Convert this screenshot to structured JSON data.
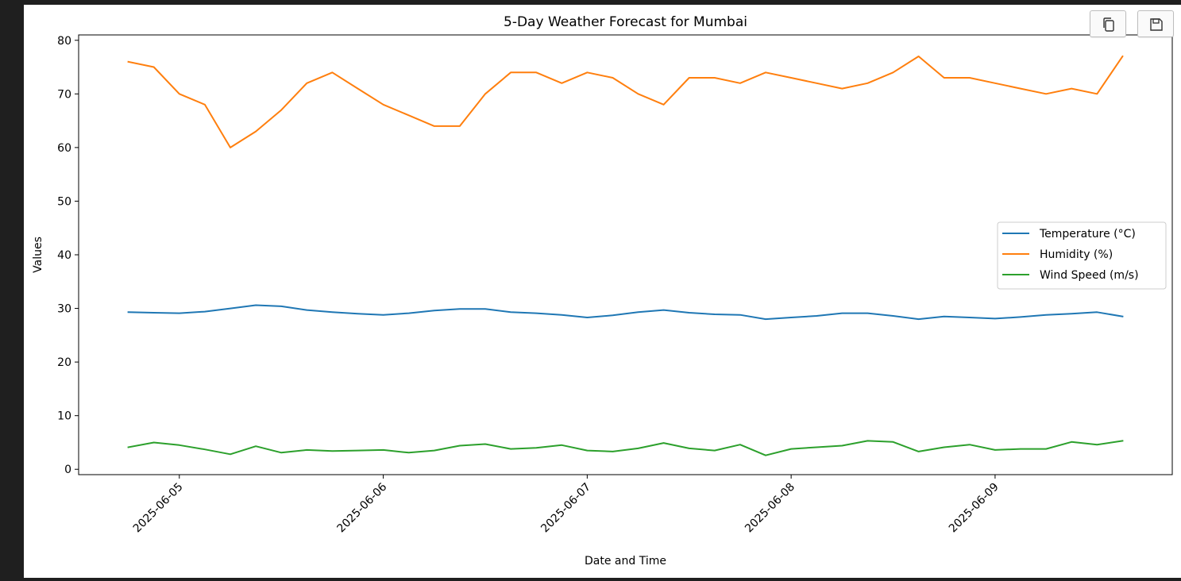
{
  "toolbar": {
    "copy_icon": "copy-icon",
    "save_icon": "floppy-disk-icon"
  },
  "chart_data": {
    "type": "line",
    "title": "5-Day Weather Forecast for Mumbai",
    "xlabel": "Date and Time",
    "ylabel": "Values",
    "x": [
      "2025-06-04 18:00",
      "2025-06-04 21:00",
      "2025-06-05 00:00",
      "2025-06-05 03:00",
      "2025-06-05 06:00",
      "2025-06-05 09:00",
      "2025-06-05 12:00",
      "2025-06-05 15:00",
      "2025-06-05 18:00",
      "2025-06-05 21:00",
      "2025-06-06 00:00",
      "2025-06-06 03:00",
      "2025-06-06 06:00",
      "2025-06-06 09:00",
      "2025-06-06 12:00",
      "2025-06-06 15:00",
      "2025-06-06 18:00",
      "2025-06-06 21:00",
      "2025-06-07 00:00",
      "2025-06-07 03:00",
      "2025-06-07 06:00",
      "2025-06-07 09:00",
      "2025-06-07 12:00",
      "2025-06-07 15:00",
      "2025-06-07 18:00",
      "2025-06-07 21:00",
      "2025-06-08 00:00",
      "2025-06-08 03:00",
      "2025-06-08 06:00",
      "2025-06-08 09:00",
      "2025-06-08 12:00",
      "2025-06-08 15:00",
      "2025-06-08 18:00",
      "2025-06-08 21:00",
      "2025-06-09 00:00",
      "2025-06-09 03:00",
      "2025-06-09 06:00",
      "2025-06-09 09:00",
      "2025-06-09 12:00",
      "2025-06-09 15:00"
    ],
    "series": [
      {
        "name": "Temperature (°C)",
        "color": "#1f77b4",
        "values": [
          29.3,
          29.2,
          29.1,
          29.4,
          30.0,
          30.6,
          30.4,
          29.7,
          29.3,
          29.0,
          28.8,
          29.1,
          29.6,
          29.9,
          29.9,
          29.3,
          29.1,
          28.8,
          28.3,
          28.7,
          29.3,
          29.7,
          29.2,
          28.9,
          28.8,
          28.0,
          28.3,
          28.6,
          29.1,
          29.1,
          28.6,
          28.0,
          28.5,
          28.3,
          28.1,
          28.4,
          28.8,
          29.0,
          29.3,
          28.5
        ]
      },
      {
        "name": "Humidity (%)",
        "color": "#ff7f0e",
        "values": [
          76,
          75,
          70,
          68,
          60,
          63,
          67,
          72,
          74,
          71,
          68,
          66,
          64,
          64,
          70,
          74,
          74,
          72,
          74,
          73,
          70,
          68,
          73,
          73,
          72,
          74,
          73,
          72,
          71,
          72,
          74,
          77,
          73,
          73,
          72,
          71,
          70,
          71,
          70,
          77
        ]
      },
      {
        "name": "Wind Speed (m/s)",
        "color": "#2ca02c",
        "values": [
          4.1,
          5.0,
          4.5,
          3.7,
          2.8,
          4.3,
          3.1,
          3.6,
          3.4,
          3.5,
          3.6,
          3.1,
          3.5,
          4.4,
          4.7,
          3.8,
          4.0,
          4.5,
          3.5,
          3.3,
          3.9,
          4.9,
          3.9,
          3.5,
          4.6,
          2.6,
          3.8,
          4.1,
          4.4,
          5.3,
          5.1,
          3.3,
          4.1,
          4.6,
          3.6,
          3.8,
          3.8,
          5.1,
          4.6,
          5.3
        ]
      }
    ],
    "x_ticks": [
      "2025-06-05",
      "2025-06-06",
      "2025-06-07",
      "2025-06-08",
      "2025-06-09"
    ],
    "ylim": [
      -1,
      81
    ],
    "y_ticks": [
      0,
      10,
      20,
      30,
      40,
      50,
      60,
      70,
      80
    ],
    "grid": false,
    "legend_position": "center-right"
  }
}
